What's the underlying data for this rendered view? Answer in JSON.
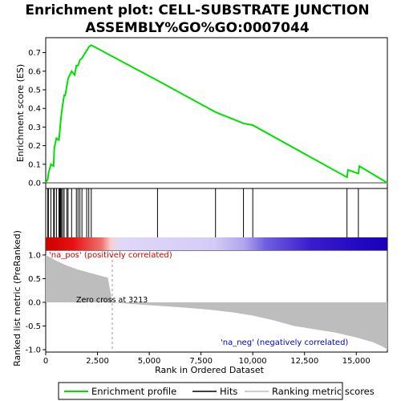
{
  "chart_data": {
    "type": "line",
    "title_line1": "Enrichment plot: CELL-SUBSTRATE JUNCTION",
    "title_line2": "ASSEMBLY%GO%GO:0007044",
    "xlabel": "Rank in Ordered Dataset",
    "ylabel_top": "Enrichment score (ES)",
    "ylabel_bottom": "Ranked list metric (PreRanked)",
    "x_ticks": [
      0,
      2500,
      5000,
      7500,
      10000,
      12500,
      15000
    ],
    "x_tick_labels": [
      "0",
      "2,500",
      "5,000",
      "7,500",
      "10,000",
      "12,500",
      "15,000"
    ],
    "es_ticks": [
      0.0,
      0.1,
      0.2,
      0.3,
      0.4,
      0.5,
      0.6,
      0.7
    ],
    "es_tick_labels": [
      "0.0",
      "0.1",
      "0.2",
      "0.3",
      "0.4",
      "0.5",
      "0.6",
      "0.7"
    ],
    "metric_ticks": [
      1.0,
      0.5,
      0.0,
      -0.5,
      -1.0
    ],
    "metric_tick_labels": [
      "1.0",
      "0.5",
      "0.0",
      "-0.5",
      "-1.0"
    ],
    "xlim": [
      0,
      16500
    ],
    "es_ylim": [
      -0.03,
      0.78
    ],
    "metric_ylim": [
      -1.05,
      1.1
    ],
    "enrichment_profile": {
      "x": [
        0,
        100,
        130,
        250,
        380,
        420,
        520,
        640,
        680,
        720,
        760,
        820,
        890,
        940,
        1020,
        1080,
        1250,
        1400,
        1480,
        1560,
        1650,
        1750,
        1860,
        1980,
        2080,
        2200,
        5400,
        8200,
        9550,
        10000,
        14550,
        14600,
        15100,
        15150,
        16500
      ],
      "y": [
        0.0,
        0.02,
        0.05,
        0.1,
        0.09,
        0.19,
        0.24,
        0.23,
        0.28,
        0.33,
        0.37,
        0.42,
        0.47,
        0.47,
        0.52,
        0.56,
        0.6,
        0.58,
        0.63,
        0.63,
        0.66,
        0.67,
        0.69,
        0.71,
        0.73,
        0.74,
        0.55,
        0.38,
        0.32,
        0.31,
        0.03,
        0.07,
        0.05,
        0.09,
        0.0
      ]
    },
    "hits": [
      100,
      130,
      250,
      380,
      420,
      520,
      640,
      680,
      720,
      760,
      820,
      890,
      1020,
      1080,
      1250,
      1480,
      1560,
      1650,
      1750,
      1980,
      2080,
      2200,
      5400,
      8200,
      9550,
      10000,
      14550,
      15100
    ],
    "ranking_metric": {
      "x": [
        0,
        500,
        1000,
        1500,
        2000,
        2500,
        3000,
        3213,
        4000,
        5000,
        6000,
        7000,
        8000,
        9000,
        10000,
        11000,
        12000,
        13000,
        14000,
        15000,
        15800,
        16300,
        16500
      ],
      "y": [
        1.0,
        0.88,
        0.78,
        0.7,
        0.64,
        0.58,
        0.52,
        0.0,
        -0.03,
        -0.06,
        -0.09,
        -0.12,
        -0.16,
        -0.21,
        -0.28,
        -0.38,
        -0.5,
        -0.57,
        -0.64,
        -0.74,
        -0.84,
        -0.94,
        -1.0
      ]
    },
    "zero_cross": 3213,
    "color_bar_stops": [
      {
        "x": 0,
        "color": "#cc0000"
      },
      {
        "x": 1300,
        "color": "#e81010"
      },
      {
        "x": 2700,
        "color": "#f07070"
      },
      {
        "x": 3150,
        "color": "#f7d0d0"
      },
      {
        "x": 3500,
        "color": "#e0d8f8"
      },
      {
        "x": 8100,
        "color": "#d4ccf6"
      },
      {
        "x": 9600,
        "color": "#b0a4ee"
      },
      {
        "x": 10600,
        "color": "#7060e0"
      },
      {
        "x": 12800,
        "color": "#3a1ccc"
      },
      {
        "x": 15200,
        "color": "#2208c0"
      },
      {
        "x": 16500,
        "color": "#1a00b8"
      }
    ],
    "annotations": {
      "pos": "'na_pos' (positively correlated)",
      "neg": "'na_neg' (negatively correlated)",
      "zero": "Zero cross at 3213"
    },
    "legend": [
      "Enrichment profile",
      "Hits",
      "Ranking metric scores"
    ],
    "colors": {
      "profile": "#00e000",
      "hits": "#000000",
      "metric_fill": "#bdbdbd",
      "zero_line": "#999999"
    }
  }
}
